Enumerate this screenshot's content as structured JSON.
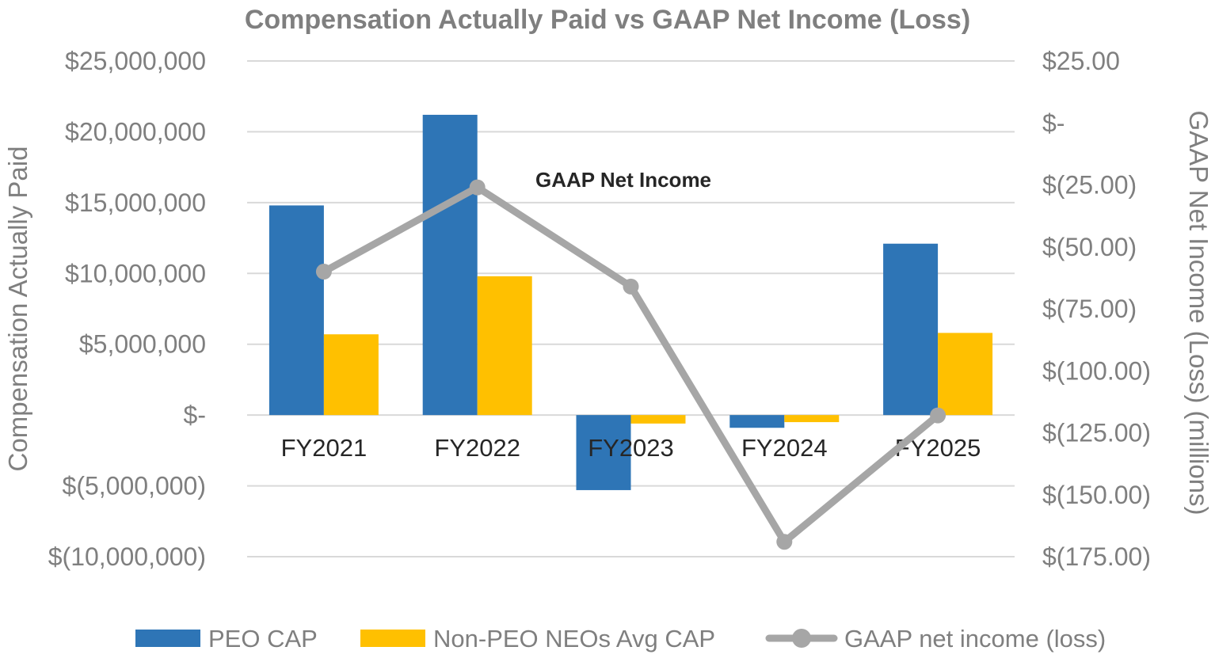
{
  "chart_data": {
    "type": "bar",
    "title": "Compensation Actually Paid vs GAAP Net Income (Loss)",
    "categories": [
      "FY2021",
      "FY2022",
      "FY2023",
      "FY2024",
      "FY2025"
    ],
    "series": [
      {
        "name": "PEO CAP",
        "kind": "bar",
        "axis": "left",
        "color": "#2e75b6",
        "values": [
          14800000,
          21200000,
          -5300000,
          -900000,
          12100000
        ]
      },
      {
        "name": "Non-PEO NEOs Avg CAP",
        "kind": "bar",
        "axis": "left",
        "color": "#ffc000",
        "values": [
          5700000,
          9800000,
          -600000,
          -500000,
          5800000
        ]
      },
      {
        "name": "GAAP net income (loss)",
        "kind": "line",
        "axis": "right",
        "color": "#a6a6a6",
        "values": [
          -60,
          -26,
          -66,
          -169,
          -118
        ]
      }
    ],
    "ylabel": "Compensation Actually Paid",
    "y2label": "GAAP Net Income (Loss) (millions)",
    "ylim": [
      -10000000,
      25000000
    ],
    "y2lim": [
      -175,
      25
    ],
    "yticks": [
      25000000,
      20000000,
      15000000,
      10000000,
      5000000,
      0,
      -5000000,
      -10000000
    ],
    "ytick_labels": [
      "$25,000,000",
      "$20,000,000",
      "$15,000,000",
      "$10,000,000",
      "$5,000,000",
      "$-",
      "$(5,000,000)",
      "$(10,000,000)"
    ],
    "y2ticks": [
      25,
      0,
      -25,
      -50,
      -75,
      -100,
      -125,
      -150,
      -175
    ],
    "y2tick_labels": [
      "$25.00",
      "$-",
      "$(25.00)",
      "$(50.00)",
      "$(75.00)",
      "$(100.00)",
      "$(125.00)",
      "$(150.00)",
      "$(175.00)"
    ],
    "annotation": "GAAP Net Income",
    "gridlines": true,
    "legend_position": "bottom"
  }
}
